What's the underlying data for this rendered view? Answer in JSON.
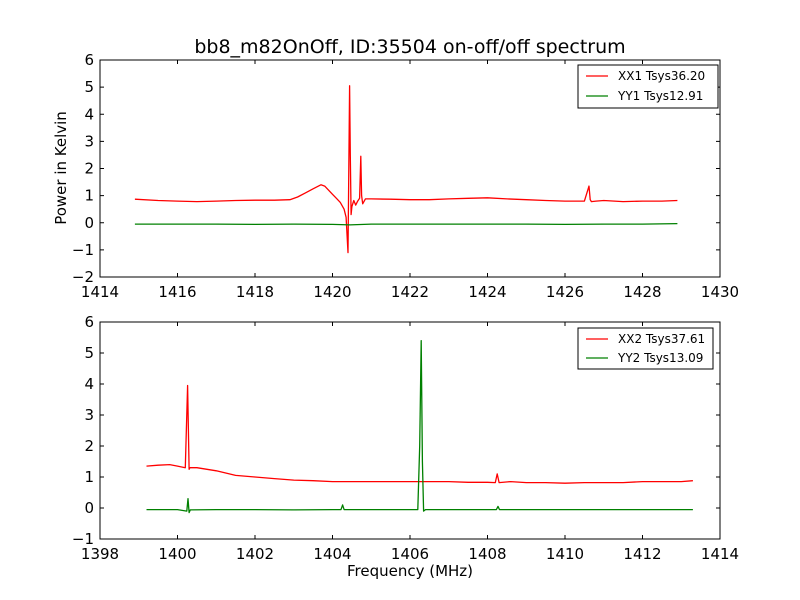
{
  "chart_data": [
    {
      "type": "line",
      "title": "bb8_m82OnOff, ID:35504 on-off/off spectrum",
      "xlabel": "",
      "ylabel": "Power in Kelvin",
      "xlim": [
        1414,
        1430
      ],
      "ylim": [
        -2,
        6
      ],
      "xticks": [
        1414,
        1416,
        1418,
        1420,
        1422,
        1424,
        1426,
        1428,
        1430
      ],
      "yticks": [
        -2,
        -1,
        0,
        1,
        2,
        3,
        4,
        5,
        6
      ],
      "legend": "top-right",
      "grid": false,
      "series": [
        {
          "name": "XX1 Tsys36.20",
          "color": "#ff0000",
          "x": [
            1414.9,
            1415.5,
            1416.0,
            1416.5,
            1417.0,
            1417.5,
            1418.0,
            1418.5,
            1418.9,
            1419.1,
            1419.3,
            1419.5,
            1419.7,
            1419.8,
            1419.9,
            1420.0,
            1420.1,
            1420.2,
            1420.3,
            1420.35,
            1420.4,
            1420.44,
            1420.46,
            1420.48,
            1420.5,
            1420.55,
            1420.6,
            1420.65,
            1420.7,
            1420.73,
            1420.75,
            1420.78,
            1420.85,
            1421.0,
            1421.5,
            1422.0,
            1422.5,
            1423.0,
            1423.5,
            1424.0,
            1424.5,
            1425.0,
            1425.5,
            1426.0,
            1426.5,
            1426.62,
            1426.65,
            1426.68,
            1426.8,
            1427.0,
            1427.5,
            1428.0,
            1428.5,
            1428.9
          ],
          "y": [
            0.87,
            0.82,
            0.8,
            0.78,
            0.8,
            0.82,
            0.83,
            0.83,
            0.85,
            0.95,
            1.1,
            1.25,
            1.4,
            1.35,
            1.2,
            1.05,
            0.9,
            0.75,
            0.5,
            0.2,
            -1.1,
            5.05,
            2.5,
            0.3,
            0.6,
            0.82,
            0.65,
            0.8,
            0.9,
            2.45,
            1.0,
            0.7,
            0.88,
            0.88,
            0.87,
            0.85,
            0.85,
            0.88,
            0.9,
            0.92,
            0.88,
            0.85,
            0.82,
            0.8,
            0.8,
            1.35,
            0.85,
            0.78,
            0.8,
            0.82,
            0.78,
            0.8,
            0.8,
            0.82
          ]
        },
        {
          "name": "YY1 Tsys12.91",
          "color": "#008000",
          "x": [
            1414.9,
            1416.0,
            1417.0,
            1418.0,
            1419.0,
            1420.0,
            1420.45,
            1421.0,
            1422.0,
            1423.0,
            1424.0,
            1425.0,
            1426.0,
            1427.0,
            1428.0,
            1428.9
          ],
          "y": [
            -0.05,
            -0.05,
            -0.05,
            -0.06,
            -0.05,
            -0.06,
            -0.08,
            -0.05,
            -0.05,
            -0.05,
            -0.05,
            -0.05,
            -0.06,
            -0.05,
            -0.05,
            -0.03
          ]
        }
      ]
    },
    {
      "type": "line",
      "title": "",
      "xlabel": "Frequency (MHz)",
      "ylabel": "",
      "xlim": [
        1398,
        1414
      ],
      "ylim": [
        -1,
        6
      ],
      "xticks": [
        1398,
        1400,
        1402,
        1404,
        1406,
        1408,
        1410,
        1412,
        1414
      ],
      "yticks": [
        -1,
        0,
        1,
        2,
        3,
        4,
        5,
        6
      ],
      "legend": "top-right",
      "grid": false,
      "series": [
        {
          "name": "XX2 Tsys37.61",
          "color": "#ff0000",
          "x": [
            1399.2,
            1399.5,
            1399.8,
            1400.0,
            1400.2,
            1400.26,
            1400.3,
            1400.32,
            1400.5,
            1401.0,
            1401.5,
            1402.0,
            1402.5,
            1403.0,
            1403.5,
            1404.0,
            1404.5,
            1405.0,
            1405.5,
            1406.0,
            1406.5,
            1407.0,
            1407.5,
            1408.0,
            1408.2,
            1408.25,
            1408.3,
            1408.6,
            1409.0,
            1409.5,
            1410.0,
            1410.5,
            1411.0,
            1411.5,
            1412.0,
            1412.5,
            1413.0,
            1413.3
          ],
          "y": [
            1.35,
            1.38,
            1.4,
            1.35,
            1.3,
            3.95,
            1.25,
            1.3,
            1.3,
            1.2,
            1.05,
            1.0,
            0.95,
            0.9,
            0.88,
            0.85,
            0.85,
            0.85,
            0.85,
            0.85,
            0.85,
            0.85,
            0.83,
            0.83,
            0.82,
            1.1,
            0.82,
            0.85,
            0.82,
            0.82,
            0.8,
            0.82,
            0.82,
            0.82,
            0.85,
            0.85,
            0.85,
            0.88
          ]
        },
        {
          "name": "YY2 Tsys13.09",
          "color": "#008000",
          "x": [
            1399.2,
            1400.0,
            1400.24,
            1400.27,
            1400.3,
            1400.33,
            1401.0,
            1402.0,
            1403.0,
            1404.0,
            1404.22,
            1404.26,
            1404.3,
            1405.0,
            1406.0,
            1406.2,
            1406.25,
            1406.29,
            1406.32,
            1406.35,
            1406.4,
            1407.0,
            1408.0,
            1408.23,
            1408.27,
            1408.31,
            1409.0,
            1410.0,
            1411.0,
            1412.0,
            1413.3
          ],
          "y": [
            -0.05,
            -0.05,
            -0.1,
            0.3,
            -0.15,
            -0.06,
            -0.05,
            -0.05,
            -0.06,
            -0.05,
            -0.05,
            0.1,
            -0.05,
            -0.05,
            -0.05,
            -0.05,
            2.0,
            5.4,
            1.5,
            -0.1,
            -0.05,
            -0.05,
            -0.05,
            -0.05,
            0.05,
            -0.05,
            -0.05,
            -0.05,
            -0.05,
            -0.05,
            -0.05
          ]
        }
      ]
    }
  ]
}
